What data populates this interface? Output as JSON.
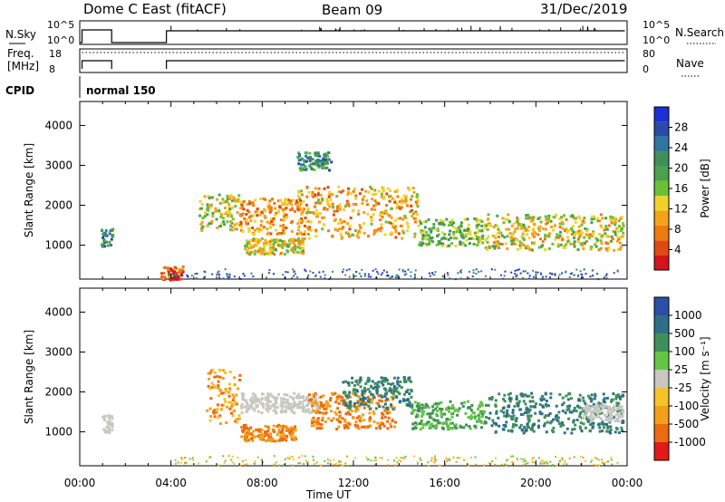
{
  "header": {
    "title": "Dome C East (fitACF)",
    "beam": "Beam 09",
    "date": "31/Dec/2019"
  },
  "panels": {
    "nsky_label": "N.Sky",
    "nsky_ticks": [
      "10^5",
      "10^0"
    ],
    "nsearch_label": "N.Search",
    "freq_label_1": "Freq.",
    "freq_label_2": "[MHz]",
    "freq_ticks": [
      "18",
      "8"
    ],
    "nave_ticks": [
      "80",
      "0"
    ],
    "nave_label": "Nave",
    "cpid_label": "CPID",
    "cpid_value": "normal 150"
  },
  "chart_data": [
    {
      "type": "heatmap",
      "title": "",
      "xlabel": "Time UT",
      "ylabel": "Slant Range [km]",
      "x_ticks": [
        "00:00",
        "04:00",
        "08:00",
        "12:00",
        "16:00",
        "20:00",
        "00:00"
      ],
      "y_ticks": [
        1000,
        2000,
        3000,
        4000
      ],
      "ylim": [
        150,
        4600
      ],
      "colorbar": {
        "label": "Power [dB]",
        "ticks": [
          4,
          8,
          12,
          16,
          20,
          24,
          28
        ],
        "colors": [
          "#1d2fd6",
          "#2a4aa8",
          "#2f77a0",
          "#3f8f5a",
          "#4aa24a",
          "#6cc036",
          "#f2d22a",
          "#f3a21a",
          "#ef7a10",
          "#e04a0e",
          "#d4141a"
        ]
      },
      "echo_regions": [
        {
          "t0": 0.9,
          "t1": 1.4,
          "r0": 1000,
          "r1": 1450,
          "level": 0.25
        },
        {
          "t0": 5.2,
          "t1": 7.0,
          "r0": 1400,
          "r1": 2300,
          "level": 0.55
        },
        {
          "t0": 7.0,
          "t1": 10.0,
          "r0": 1300,
          "r1": 2200,
          "level": 0.75
        },
        {
          "t0": 7.2,
          "t1": 9.8,
          "r0": 800,
          "r1": 1200,
          "level": 0.6
        },
        {
          "t0": 9.5,
          "t1": 14.8,
          "r0": 1200,
          "r1": 2500,
          "level": 0.7
        },
        {
          "t0": 14.8,
          "t1": 17.5,
          "r0": 1000,
          "r1": 1700,
          "level": 0.45
        },
        {
          "t0": 17.5,
          "t1": 23.8,
          "r0": 900,
          "r1": 1800,
          "level": 0.6
        },
        {
          "t0": 3.5,
          "t1": 4.5,
          "r0": 160,
          "r1": 500,
          "level": 0.9
        },
        {
          "t0": 9.5,
          "t1": 11.0,
          "r0": 2900,
          "r1": 3350,
          "level": 0.3
        }
      ]
    },
    {
      "type": "heatmap",
      "title": "",
      "xlabel": "Time UT",
      "ylabel": "Slant Range [km]",
      "x_ticks": [
        "00:00",
        "04:00",
        "08:00",
        "12:00",
        "16:00",
        "20:00",
        "00:00"
      ],
      "y_ticks": [
        1000,
        2000,
        3000,
        4000
      ],
      "ylim": [
        150,
        4600
      ],
      "colorbar": {
        "label": "Velocity [m s⁻¹]",
        "ticks": [
          "1000",
          "500",
          "100",
          "25",
          "-25",
          "-100",
          "-500",
          "-1000"
        ],
        "colors": [
          "#2b4fa8",
          "#2f6f86",
          "#3f8f5a",
          "#64c446",
          "#c8c8c0",
          "#f6c22a",
          "#f2a01a",
          "#ec6a12",
          "#e31a1a"
        ]
      },
      "echo_regions": [
        {
          "t0": 0.9,
          "t1": 1.4,
          "r0": 1000,
          "r1": 1450,
          "vel": "-25..25"
        },
        {
          "t0": 5.5,
          "t1": 7.0,
          "r0": 1200,
          "r1": 2600,
          "vel": "-100..-500"
        },
        {
          "t0": 7.0,
          "t1": 9.5,
          "r0": 800,
          "r1": 1200,
          "vel": "-500"
        },
        {
          "t0": 7.0,
          "t1": 10.5,
          "r0": 1500,
          "r1": 2000,
          "vel": "-25..25"
        },
        {
          "t0": 10.0,
          "t1": 13.8,
          "r0": 1100,
          "r1": 2000,
          "vel": "-500"
        },
        {
          "t0": 11.5,
          "t1": 14.5,
          "r0": 1600,
          "r1": 2400,
          "vel": "100..500"
        },
        {
          "t0": 14.5,
          "t1": 17.8,
          "r0": 1100,
          "r1": 1800,
          "vel": "100"
        },
        {
          "t0": 17.8,
          "t1": 23.8,
          "r0": 1000,
          "r1": 2000,
          "vel": "100..500"
        },
        {
          "t0": 22.0,
          "t1": 23.8,
          "r0": 1300,
          "r1": 1700,
          "vel": "-25..25"
        }
      ]
    }
  ]
}
